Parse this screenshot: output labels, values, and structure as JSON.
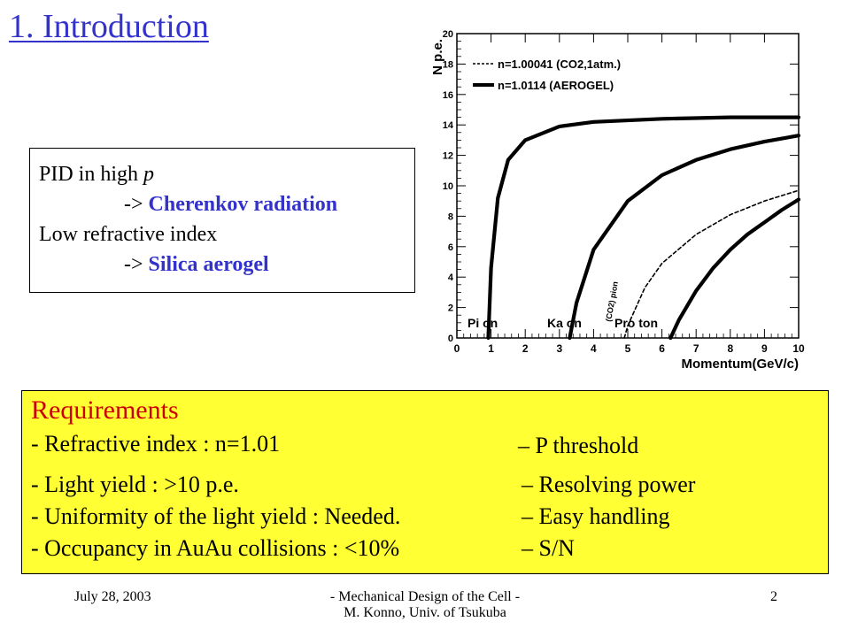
{
  "slide": {
    "title": "1. Introduction",
    "pid": {
      "line1_prefix": "PID in high ",
      "line1_var": "p",
      "line2_arrow": "-> ",
      "line2_highlight": "Cherenkov radiation",
      "line3": "Low refractive index",
      "line4_arrow": "-> ",
      "line4_highlight": "Silica aerogel"
    },
    "requirements": {
      "title": "Requirements",
      "items": [
        {
          "left": "- Refractive index : n=1.01",
          "right": "– P threshold"
        },
        {
          "left": "- Light yield : >10 p.e.",
          "right": "– Resolving power"
        },
        {
          "left": "- Uniformity of the light yield : Needed.",
          "right": "– Easy handling"
        },
        {
          "left": "- Occupancy in AuAu collisions : <10%",
          "right": "– S/N"
        }
      ]
    },
    "footer": {
      "date": "July 28, 2003",
      "center_line1": "- Mechanical Design of the Cell -",
      "center_line2": "M. Konno, Univ. of Tsukuba",
      "page": "2"
    }
  },
  "chart_data": {
    "type": "line",
    "xlabel": "Momentum(GeV/c)",
    "ylabel": "N p.e.",
    "xlim": [
      0,
      10
    ],
    "ylim": [
      0,
      20
    ],
    "x_ticks": [
      "0",
      "1",
      "2",
      "3",
      "4",
      "5",
      "6",
      "7",
      "8",
      "9",
      "10"
    ],
    "y_ticks": [
      "0",
      "2",
      "4",
      "6",
      "8",
      "10",
      "12",
      "14",
      "16",
      "18",
      "20"
    ],
    "legend": [
      {
        "label": "n=1.00041 (CO2,1atm.)",
        "style": "dashed"
      },
      {
        "label": "n=1.0114  (AEROGEL)",
        "style": "solid"
      }
    ],
    "annotations": [
      "Pi on",
      "Ka on",
      "Pro ton",
      "(CO2) pion"
    ],
    "series": [
      {
        "name": "Pion (AEROGEL)",
        "style": "solid",
        "x": [
          0.92,
          1.0,
          1.2,
          1.5,
          2.0,
          3.0,
          4.0,
          6.0,
          8.0,
          10.0
        ],
        "y": [
          0,
          4.6,
          9.2,
          11.7,
          13.0,
          13.9,
          14.2,
          14.4,
          14.5,
          14.5
        ]
      },
      {
        "name": "Kaon (AEROGEL)",
        "style": "solid",
        "x": [
          3.3,
          3.5,
          4.0,
          5.0,
          6.0,
          7.0,
          8.0,
          9.0,
          10.0
        ],
        "y": [
          0,
          2.3,
          5.8,
          9.0,
          10.7,
          11.7,
          12.4,
          12.9,
          13.3
        ]
      },
      {
        "name": "Pion (CO2)",
        "style": "dashed",
        "x": [
          4.9,
          5.0,
          5.5,
          6.0,
          7.0,
          8.0,
          9.0,
          10.0
        ],
        "y": [
          0,
          0.8,
          3.3,
          4.9,
          6.8,
          8.1,
          9.0,
          9.7
        ]
      },
      {
        "name": "Proton (AEROGEL)",
        "style": "solid",
        "x": [
          6.25,
          6.5,
          7.0,
          7.5,
          8.0,
          8.5,
          9.0,
          9.5,
          10.0
        ],
        "y": [
          0,
          1.2,
          3.1,
          4.6,
          5.8,
          6.8,
          7.6,
          8.4,
          9.1
        ]
      }
    ]
  }
}
